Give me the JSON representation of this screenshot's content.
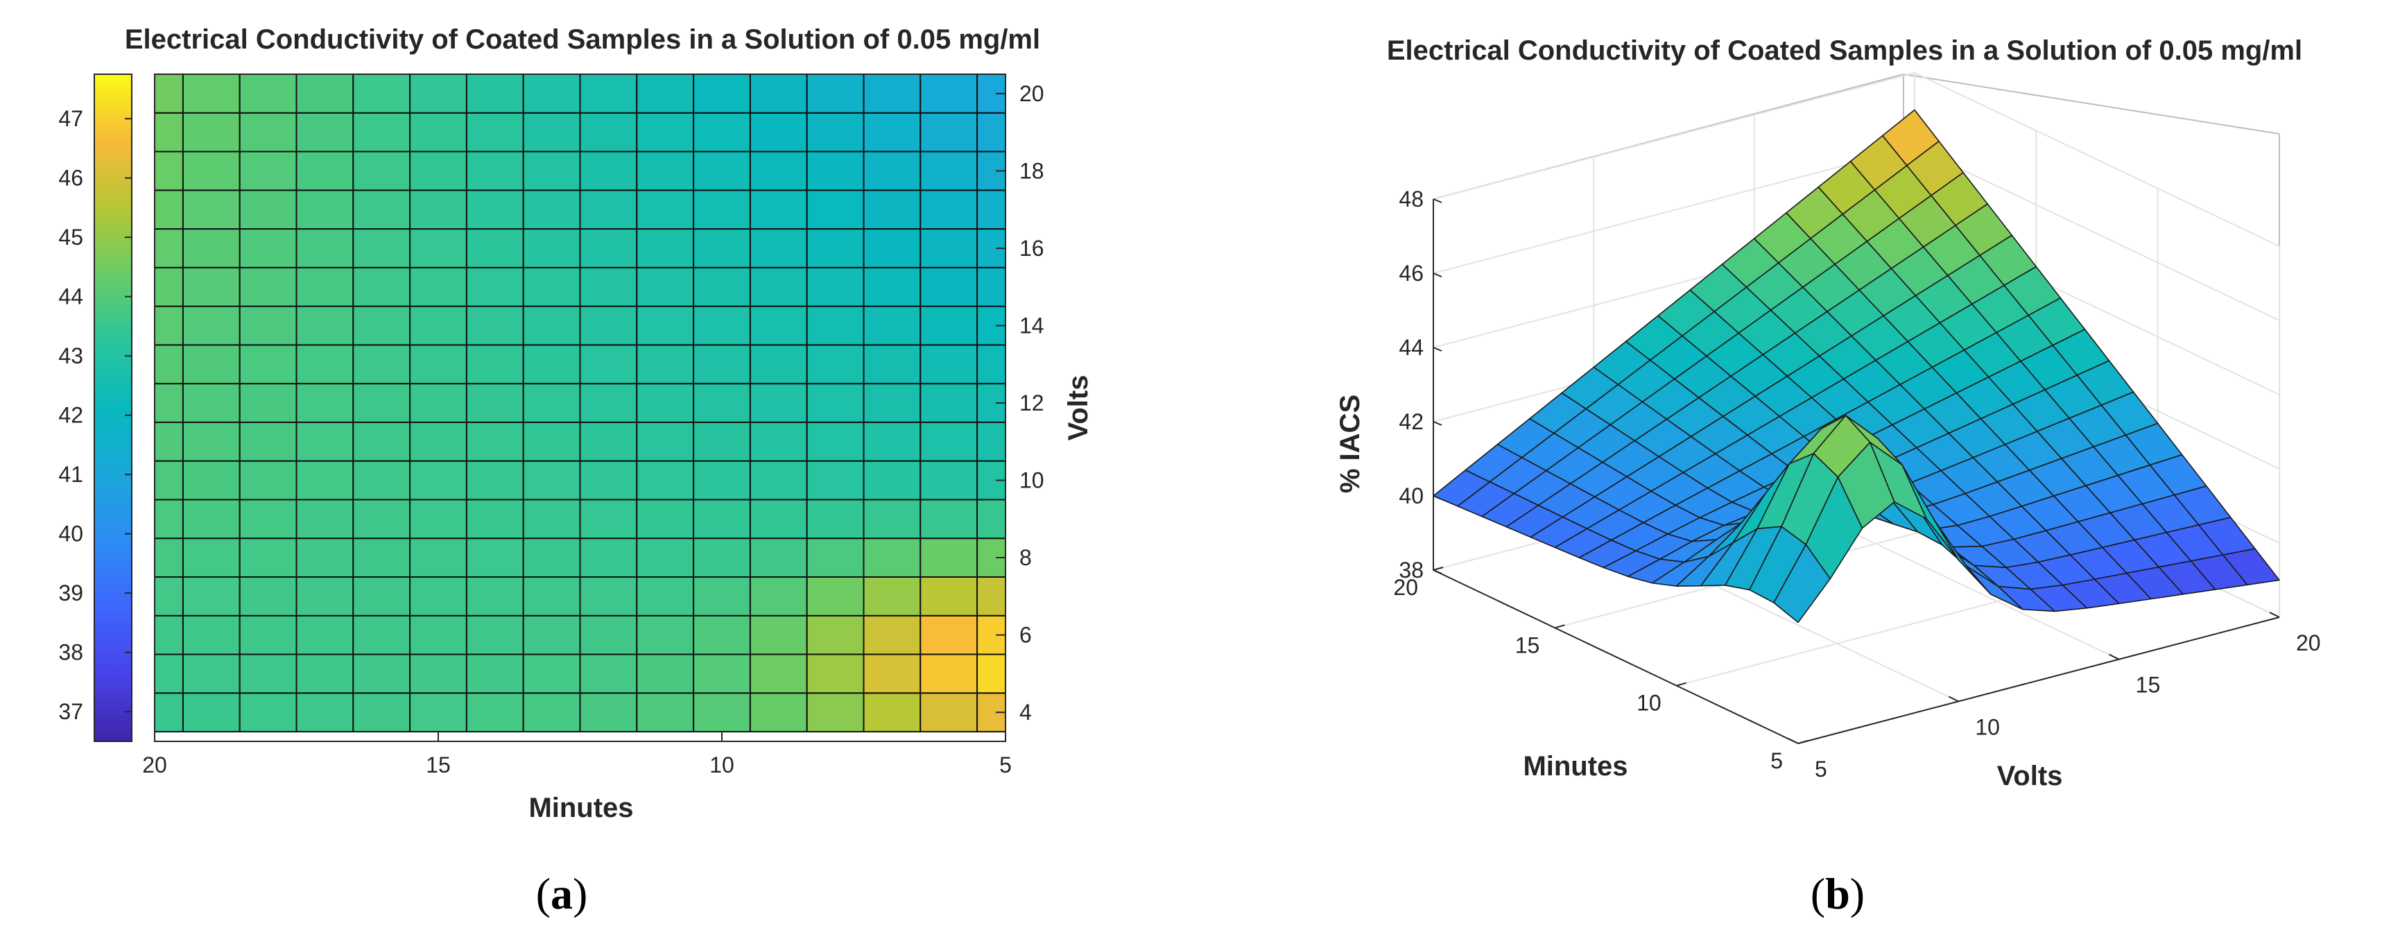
{
  "chart_data": [
    {
      "panel_label": "a",
      "type": "heatmap",
      "title": "Electrical Conductivity of Coated Samples in a Solution of 0.05 mg/ml",
      "xlabel": "Minutes",
      "ylabel": "Volts",
      "x_direction": "reversed",
      "xlim": [
        20,
        5
      ],
      "ylim": [
        3.25,
        20.5
      ],
      "x_ticks": [
        "20",
        "15",
        "10",
        "5"
      ],
      "y_ticks": [
        "4",
        "6",
        "8",
        "10",
        "12",
        "14",
        "16",
        "18",
        "20"
      ],
      "colorbar": {
        "position": "left",
        "range": [
          36.5,
          47.75
        ],
        "ticks": [
          "37",
          "38",
          "39",
          "40",
          "41",
          "42",
          "43",
          "44",
          "45",
          "46",
          "47"
        ],
        "colormap": "parula"
      },
      "grid_minutes": [
        20,
        19,
        18,
        17,
        16,
        15,
        14,
        13,
        12,
        11,
        10,
        9,
        8,
        7,
        6,
        5
      ],
      "grid_volts": [
        4,
        5,
        6,
        7,
        8,
        9,
        10,
        11,
        12,
        13,
        14,
        15,
        16,
        17,
        18,
        19,
        20
      ],
      "corner_values": {
        "minutes_20_volts_4": 43.5,
        "minutes_20_volts_20": 44.5,
        "minutes_5_volts_4": 44.0,
        "minutes_5_volts_20": 41.0
      },
      "peak": {
        "minutes": 5,
        "volts": 5.5,
        "value": 47.5
      }
    },
    {
      "panel_label": "b",
      "type": "surface",
      "title": "Electrical Conductivity of Coated Samples in a Solution of 0.05 mg/ml",
      "xlabel": "Volts",
      "ylabel": "Minutes",
      "zlabel": "% IACS",
      "x_ticks": [
        "5",
        "10",
        "15",
        "20"
      ],
      "y_ticks": [
        "5",
        "10",
        "15",
        "20"
      ],
      "z_ticks": [
        "38",
        "40",
        "42",
        "44",
        "46",
        "48"
      ],
      "zlim": [
        38,
        48
      ],
      "colormap": "parula",
      "grid_lines": true
    }
  ]
}
